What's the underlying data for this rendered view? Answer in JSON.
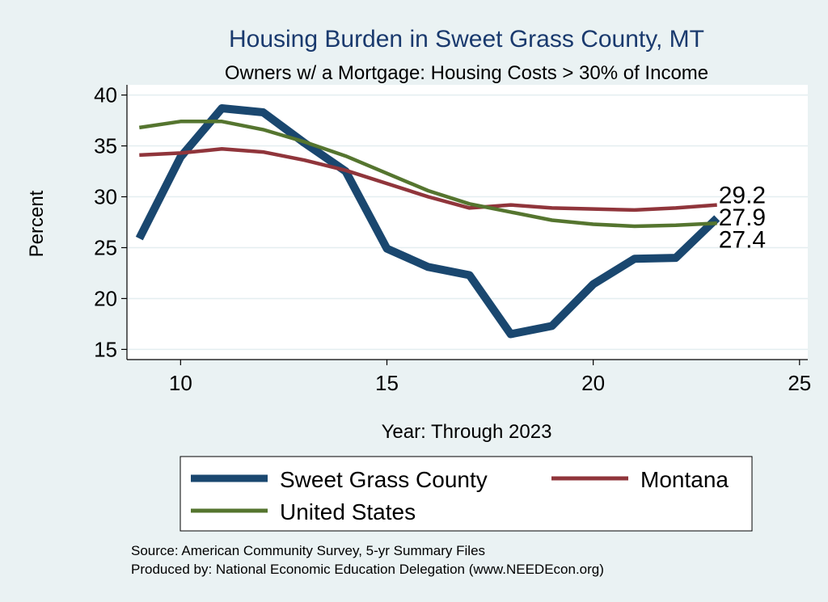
{
  "chart_data": {
    "type": "line",
    "title": "Housing Burden in Sweet Grass County, MT",
    "subtitle": "Owners w/ a Mortgage: Housing Costs > 30% of Income",
    "xlabel": "Year: Through 2023",
    "ylabel": "Percent",
    "xlim": [
      8.7,
      25.2
    ],
    "ylim": [
      14,
      41
    ],
    "x_ticks": [
      10,
      15,
      20,
      25
    ],
    "y_ticks": [
      15,
      20,
      25,
      30,
      35,
      40
    ],
    "grid": true,
    "legend_position": "bottom",
    "x": [
      9,
      10,
      11,
      12,
      13,
      14,
      15,
      16,
      17,
      18,
      19,
      20,
      21,
      22,
      23
    ],
    "series": [
      {
        "name": "Sweet Grass County",
        "color": "#1A476F",
        "values": [
          25.9,
          33.9,
          38.7,
          38.3,
          35.3,
          32.5,
          24.9,
          23.1,
          22.3,
          16.5,
          17.3,
          21.4,
          23.9,
          24.0,
          27.9
        ],
        "end_label": "27.9"
      },
      {
        "name": "Montana",
        "color": "#90353B",
        "values": [
          34.1,
          34.3,
          34.7,
          34.4,
          33.6,
          32.6,
          31.3,
          30.0,
          28.9,
          29.2,
          28.9,
          28.8,
          28.7,
          28.9,
          29.2
        ],
        "end_label": "29.2"
      },
      {
        "name": "United States",
        "color": "#55752F",
        "values": [
          36.8,
          37.4,
          37.4,
          36.6,
          35.4,
          34.0,
          32.3,
          30.6,
          29.3,
          28.5,
          27.7,
          27.3,
          27.1,
          27.2,
          27.4
        ],
        "end_label": "27.4"
      }
    ]
  },
  "notes": {
    "source": "Source: American Community Survey, 5-yr Summary Files",
    "produced_by": "Produced by: National Economic Education Delegation (www.NEEDEcon.org)"
  }
}
